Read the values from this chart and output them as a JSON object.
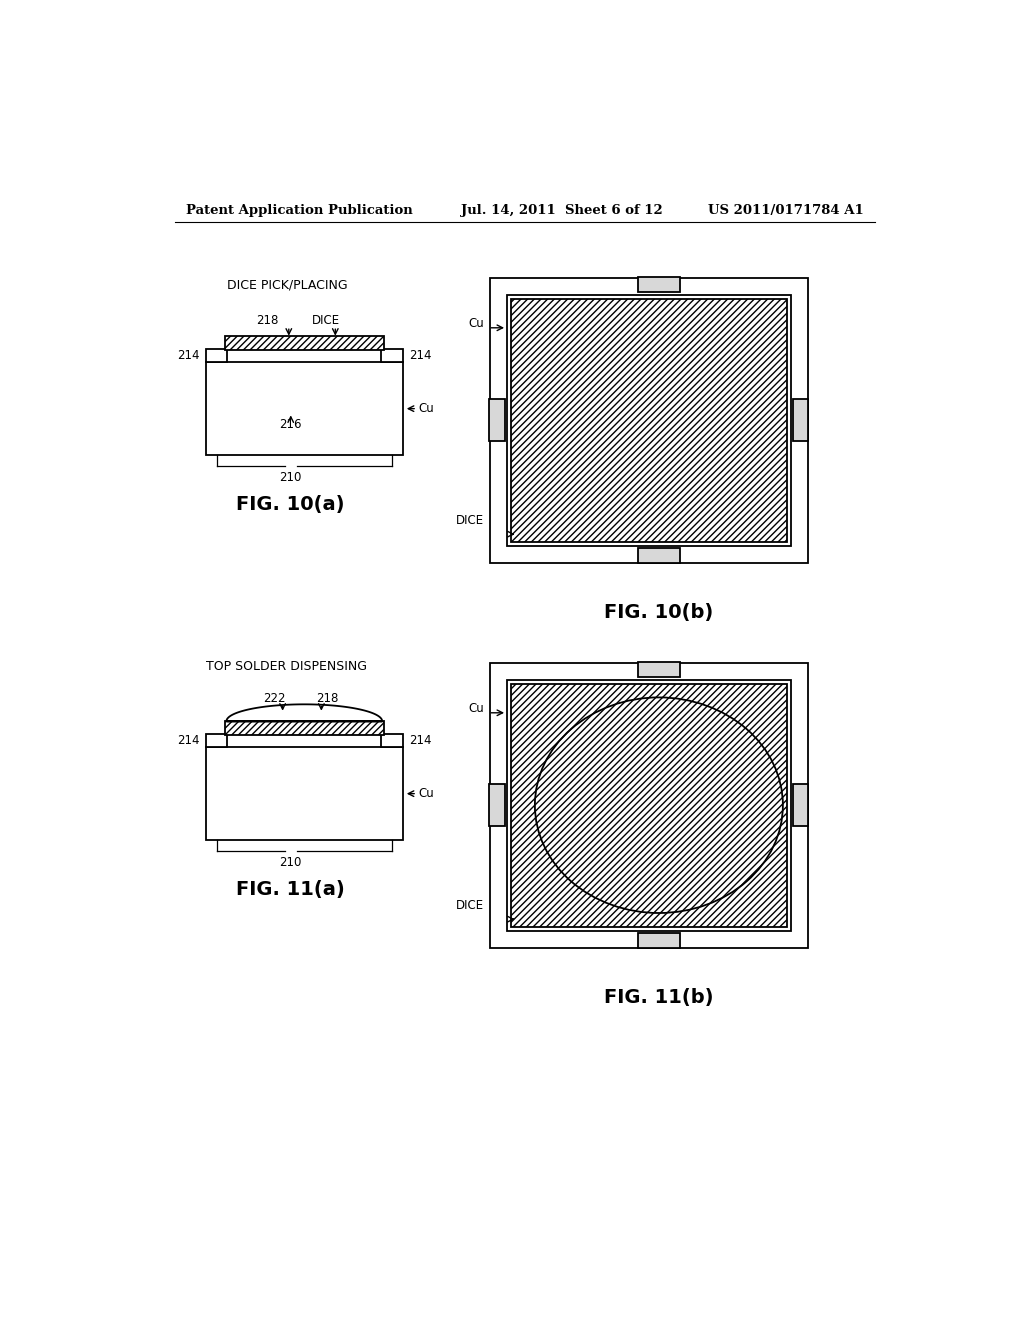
{
  "header_left": "Patent Application Publication",
  "header_mid": "Jul. 14, 2011  Sheet 6 of 12",
  "header_right": "US 2011/0171784 A1",
  "bg_color": "#ffffff",
  "line_color": "#000000",
  "fig10a_label": "FIG. 10(a)",
  "fig10b_label": "FIG. 10(b)",
  "fig11a_label": "FIG. 11(a)",
  "fig11b_label": "FIG. 11(b)",
  "label_dice_pick": "DICE PICK/PLACING",
  "label_top_solder": "TOP SOLDER DISPENSING",
  "label_218_10a": "218",
  "label_dice_10a": "DICE",
  "label_214_left_10a": "214",
  "label_214_right_10a": "214",
  "label_216_10a": "216",
  "label_cu_10a": "Cu",
  "label_210_10a": "210",
  "label_cu_10b": "Cu",
  "label_dice_10b": "DICE",
  "label_222_11a": "222",
  "label_218_11a": "218",
  "label_214_left_11a": "214",
  "label_214_right_11a": "214",
  "label_cu_11a": "Cu",
  "label_210_11a": "210",
  "label_cu_11b": "Cu",
  "label_dice_11b": "DICE"
}
